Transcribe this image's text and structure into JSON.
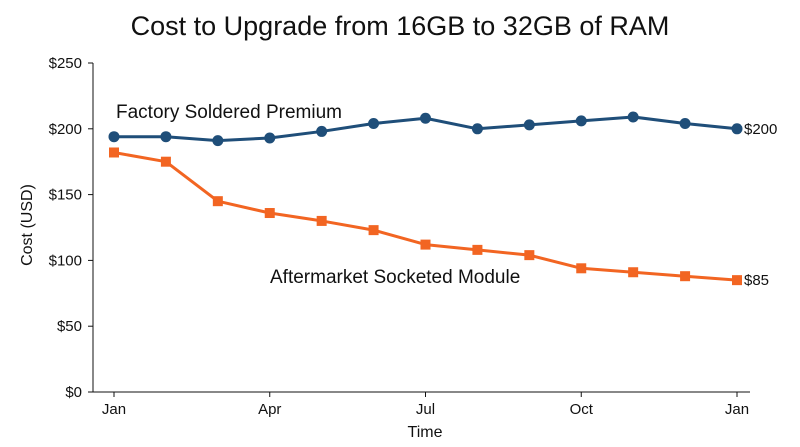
{
  "chart_data": {
    "type": "line",
    "title": "Cost to Upgrade from 16GB to 32GB of RAM",
    "xlabel": "Time",
    "ylabel": "Cost (USD)",
    "ylim": [
      0,
      250
    ],
    "y_ticks": [
      0,
      50,
      100,
      150,
      200,
      250
    ],
    "y_tick_labels": [
      "$0",
      "$50",
      "$100",
      "$150",
      "$200",
      "$250"
    ],
    "x_ticks": [
      0,
      3,
      6,
      9,
      12
    ],
    "x_tick_labels": [
      "Jan",
      "Apr",
      "Jul",
      "Oct",
      "Jan"
    ],
    "x": [
      0,
      1,
      2,
      3,
      4,
      5,
      6,
      7,
      8,
      9,
      10,
      11,
      12
    ],
    "grid": false,
    "series": [
      {
        "name": "Factory Soldered Premium",
        "color": "#1f4e79",
        "marker": "circle",
        "values": [
          194,
          194,
          191,
          193,
          198,
          204,
          208,
          200,
          203,
          206,
          209,
          204,
          200
        ],
        "end_label": "$200"
      },
      {
        "name": "Aftermarket Socketed Module",
        "color": "#f26522",
        "marker": "square",
        "values": [
          182,
          175,
          145,
          136,
          130,
          123,
          112,
          108,
          104,
          94,
          91,
          88,
          85
        ],
        "end_label": "$85"
      }
    ]
  }
}
